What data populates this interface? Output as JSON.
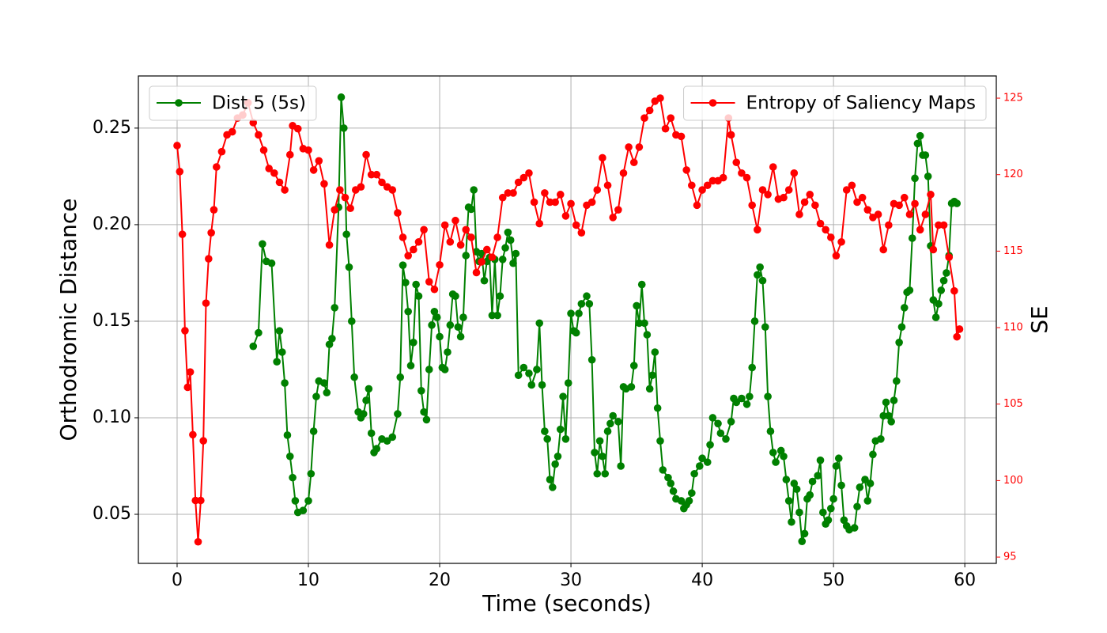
{
  "chart_data": {
    "type": "line",
    "xlabel": "Time (seconds)",
    "ylabel": "Orthodromic Distance",
    "y2label": "SE",
    "xlim": [
      -2.95,
      62.4
    ],
    "xticks": [
      0,
      10,
      20,
      30,
      40,
      50,
      60
    ],
    "ylim": [
      0.0246,
      0.277
    ],
    "yticks": [
      0.05,
      {
        "value": 0.1,
        "label": "0.10"
      },
      0.15,
      {
        "value": 0.2,
        "label": "0.20"
      },
      0.25
    ],
    "y2lim": [
      94.59,
      126.45
    ],
    "y2ticks": [
      95,
      100,
      105,
      110,
      115,
      120,
      125
    ],
    "grid": true,
    "series": [
      {
        "name": "Dist 5 (5s)",
        "color": "#008000",
        "axis": "y",
        "legend": "upper left",
        "x": [
          5.8,
          6.2,
          6.5,
          6.8,
          7.2,
          7.6,
          7.8,
          8.0,
          8.2,
          8.4,
          8.6,
          8.8,
          9.0,
          9.2,
          9.6,
          10.0,
          10.2,
          10.4,
          10.6,
          10.8,
          11.2,
          11.4,
          11.6,
          11.8,
          12.0,
          12.3,
          12.5,
          12.7,
          12.9,
          13.1,
          13.3,
          13.5,
          13.8,
          14.0,
          14.2,
          14.4,
          14.6,
          14.8,
          15.0,
          15.2,
          15.6,
          16.0,
          16.4,
          16.8,
          17.0,
          17.2,
          17.4,
          17.6,
          17.8,
          18.0,
          18.2,
          18.4,
          18.6,
          18.8,
          19.0,
          19.2,
          19.4,
          19.6,
          19.8,
          20.0,
          20.2,
          20.4,
          20.6,
          20.8,
          21.0,
          21.2,
          21.4,
          21.6,
          21.8,
          22.0,
          22.2,
          22.4,
          22.6,
          22.8,
          23.0,
          23.2,
          23.4,
          23.6,
          23.8,
          24.0,
          24.2,
          24.4,
          24.6,
          24.8,
          25.0,
          25.2,
          25.4,
          25.6,
          25.8,
          26.0,
          26.4,
          26.8,
          27.0,
          27.4,
          27.6,
          27.8,
          28.0,
          28.2,
          28.4,
          28.6,
          28.8,
          29.0,
          29.2,
          29.4,
          29.6,
          29.8,
          30.0,
          30.2,
          30.4,
          30.6,
          30.8,
          31.2,
          31.4,
          31.6,
          31.8,
          32.0,
          32.2,
          32.4,
          32.6,
          32.8,
          33.0,
          33.2,
          33.6,
          33.8,
          34.0,
          34.2,
          34.6,
          34.8,
          35.0,
          35.2,
          35.4,
          35.6,
          35.8,
          36.0,
          36.2,
          36.4,
          36.6,
          36.8,
          37.0,
          37.4,
          37.6,
          37.8,
          38.0,
          38.4,
          38.6,
          38.8,
          39.0,
          39.2,
          39.4,
          39.8,
          40.0,
          40.4,
          40.6,
          40.8,
          41.2,
          41.4,
          41.8,
          42.2,
          42.4,
          42.6,
          43.0,
          43.4,
          43.6,
          43.8,
          44.0,
          44.2,
          44.4,
          44.6,
          44.8,
          45.0,
          45.2,
          45.4,
          45.6,
          46.0,
          46.2,
          46.4,
          46.6,
          46.8,
          47.0,
          47.2,
          47.4,
          47.6,
          47.8,
          48.0,
          48.2,
          48.4,
          48.8,
          49.0,
          49.2,
          49.4,
          49.6,
          49.8,
          50.0,
          50.2,
          50.4,
          50.6,
          50.8,
          51.0,
          51.2,
          51.6,
          51.8,
          52.0,
          52.4,
          52.6,
          52.8,
          53.0,
          53.2,
          53.6,
          53.8,
          54.0,
          54.2,
          54.4,
          54.6,
          54.8,
          55.0,
          55.2,
          55.4,
          55.6,
          55.8,
          56.0,
          56.2,
          56.4,
          56.6,
          56.8,
          57.0,
          57.2,
          57.4,
          57.6,
          57.8,
          58.0,
          58.2,
          58.4,
          58.6,
          58.8,
          59.0,
          59.2,
          59.4
        ],
        "values": [
          0.137,
          0.144,
          0.19,
          0.181,
          0.18,
          0.129,
          0.145,
          0.134,
          0.118,
          0.091,
          0.08,
          0.069,
          0.057,
          0.051,
          0.052,
          0.057,
          0.071,
          0.093,
          0.111,
          0.119,
          0.118,
          0.113,
          0.138,
          0.141,
          0.157,
          0.209,
          0.266,
          0.25,
          0.195,
          0.178,
          0.15,
          0.121,
          0.103,
          0.1,
          0.102,
          0.109,
          0.115,
          0.092,
          0.082,
          0.084,
          0.089,
          0.088,
          0.09,
          0.102,
          0.121,
          0.179,
          0.17,
          0.155,
          0.127,
          0.139,
          0.169,
          0.163,
          0.114,
          0.103,
          0.099,
          0.125,
          0.148,
          0.155,
          0.152,
          0.142,
          0.126,
          0.125,
          0.134,
          0.148,
          0.164,
          0.163,
          0.147,
          0.142,
          0.152,
          0.184,
          0.209,
          0.208,
          0.218,
          0.186,
          0.181,
          0.185,
          0.171,
          0.181,
          0.183,
          0.153,
          0.182,
          0.153,
          0.163,
          0.182,
          0.188,
          0.196,
          0.192,
          0.18,
          0.185,
          0.122,
          0.126,
          0.123,
          0.117,
          0.125,
          0.149,
          0.117,
          0.093,
          0.089,
          0.068,
          0.064,
          0.076,
          0.08,
          0.094,
          0.111,
          0.089,
          0.118,
          0.154,
          0.145,
          0.144,
          0.154,
          0.159,
          0.163,
          0.159,
          0.13,
          0.082,
          0.071,
          0.088,
          0.08,
          0.071,
          0.093,
          0.097,
          0.101,
          0.098,
          0.075,
          0.116,
          0.115,
          0.116,
          0.127,
          0.158,
          0.149,
          0.169,
          0.149,
          0.143,
          0.115,
          0.122,
          0.134,
          0.105,
          0.088,
          0.073,
          0.069,
          0.066,
          0.062,
          0.058,
          0.057,
          0.053,
          0.055,
          0.057,
          0.061,
          0.071,
          0.075,
          0.079,
          0.077,
          0.086,
          0.1,
          0.097,
          0.092,
          0.089,
          0.098,
          0.11,
          0.108,
          0.11,
          0.107,
          0.111,
          0.126,
          0.15,
          0.174,
          0.178,
          0.171,
          0.147,
          0.111,
          0.093,
          0.082,
          0.077,
          0.083,
          0.08,
          0.068,
          0.057,
          0.046,
          0.066,
          0.063,
          0.051,
          0.036,
          0.04,
          0.058,
          0.06,
          0.067,
          0.07,
          0.078,
          0.051,
          0.045,
          0.047,
          0.053,
          0.058,
          0.075,
          0.079,
          0.065,
          0.047,
          0.044,
          0.042,
          0.043,
          0.054,
          0.064,
          0.068,
          0.057,
          0.066,
          0.081,
          0.088,
          0.089,
          0.101,
          0.108,
          0.101,
          0.098,
          0.109,
          0.119,
          0.139,
          0.147,
          0.157,
          0.165,
          0.166,
          0.193,
          0.224,
          0.242,
          0.246,
          0.236,
          0.236,
          0.225,
          0.189,
          0.161,
          0.152,
          0.159,
          0.166,
          0.171,
          0.175,
          0.184,
          0.211,
          0.212,
          0.211
        ]
      },
      {
        "name": "Entropy of Saliency Maps",
        "color": "#ff0000",
        "axis": "y2",
        "legend": "upper right",
        "x": [
          0,
          0.2,
          0.4,
          0.6,
          0.8,
          1.0,
          1.2,
          1.4,
          1.6,
          1.8,
          2.0,
          2.2,
          2.4,
          2.6,
          2.8,
          3.0,
          3.4,
          3.8,
          4.2,
          4.6,
          5.0,
          5.4,
          5.8,
          6.2,
          6.6,
          7.0,
          7.4,
          7.8,
          8.2,
          8.6,
          8.8,
          9.2,
          9.6,
          10.0,
          10.4,
          10.8,
          11.2,
          11.6,
          12.0,
          12.4,
          12.8,
          13.2,
          13.6,
          14.0,
          14.4,
          14.8,
          15.2,
          15.6,
          16.0,
          16.4,
          16.8,
          17.2,
          17.6,
          18.0,
          18.4,
          18.8,
          19.2,
          19.6,
          20.0,
          20.4,
          20.8,
          21.2,
          21.6,
          22.0,
          22.4,
          22.8,
          23.2,
          23.6,
          24.0,
          24.4,
          24.8,
          25.2,
          25.6,
          26.0,
          26.4,
          26.8,
          27.2,
          27.6,
          28.0,
          28.4,
          28.8,
          29.2,
          29.6,
          30.0,
          30.4,
          30.8,
          31.2,
          31.6,
          32.0,
          32.4,
          32.8,
          33.2,
          33.6,
          34.0,
          34.4,
          34.8,
          35.2,
          35.6,
          36.0,
          36.4,
          36.8,
          37.2,
          37.6,
          38.0,
          38.4,
          38.8,
          39.2,
          39.6,
          40.0,
          40.4,
          40.8,
          41.2,
          41.6,
          42.0,
          42.2,
          42.6,
          43.0,
          43.4,
          43.8,
          44.2,
          44.6,
          45.0,
          45.4,
          45.8,
          46.2,
          46.6,
          47.0,
          47.4,
          47.8,
          48.2,
          48.6,
          49.0,
          49.4,
          49.8,
          50.2,
          50.6,
          51.0,
          51.4,
          51.8,
          52.2,
          52.6,
          53.0,
          53.4,
          53.8,
          54.2,
          54.6,
          55.0,
          55.4,
          55.8,
          56.2,
          56.6,
          57.0,
          57.4,
          57.6,
          58.0,
          58.4,
          58.8,
          59.2,
          59.4,
          59.6
        ],
        "values": [
          121.9,
          120.2,
          116.1,
          109.8,
          106.1,
          107.1,
          103.0,
          98.7,
          96.0,
          98.7,
          102.6,
          111.6,
          114.5,
          116.2,
          117.7,
          120.5,
          121.5,
          122.6,
          122.8,
          123.7,
          123.9,
          124.7,
          123.4,
          122.6,
          121.6,
          120.4,
          120.1,
          119.5,
          119.0,
          121.3,
          123.2,
          123.0,
          121.7,
          121.6,
          120.3,
          120.9,
          119.4,
          115.4,
          117.7,
          119.0,
          118.5,
          117.8,
          119.0,
          119.2,
          121.3,
          120.0,
          120.0,
          119.5,
          119.2,
          119.0,
          117.5,
          115.9,
          114.7,
          115.1,
          115.6,
          116.4,
          113.0,
          112.5,
          114.1,
          116.7,
          115.6,
          117.0,
          115.4,
          116.4,
          115.9,
          113.6,
          114.3,
          115.1,
          114.6,
          115.9,
          118.5,
          118.8,
          118.8,
          119.5,
          119.8,
          120.1,
          118.2,
          116.8,
          118.8,
          118.2,
          118.2,
          118.7,
          117.3,
          118.1,
          116.7,
          116.2,
          118.0,
          118.2,
          119.0,
          121.1,
          119.3,
          117.2,
          117.7,
          120.1,
          121.8,
          120.8,
          121.8,
          123.7,
          124.2,
          124.8,
          125.0,
          123.0,
          123.7,
          122.6,
          122.5,
          120.3,
          119.3,
          118.0,
          119.0,
          119.3,
          119.6,
          119.6,
          119.8,
          123.7,
          122.6,
          120.8,
          120.1,
          119.8,
          118.0,
          116.4,
          119.0,
          118.7,
          120.5,
          118.4,
          118.5,
          119.0,
          120.1,
          117.4,
          118.2,
          118.7,
          118.0,
          116.8,
          116.4,
          115.9,
          114.7,
          115.6,
          119.0,
          119.3,
          118.2,
          118.5,
          117.7,
          117.2,
          117.4,
          115.1,
          116.7,
          118.1,
          118.0,
          118.5,
          117.4,
          118.1,
          116.4,
          117.4,
          118.7,
          115.1,
          116.7,
          116.7,
          114.6,
          112.4,
          109.4,
          109.9
        ]
      }
    ]
  }
}
